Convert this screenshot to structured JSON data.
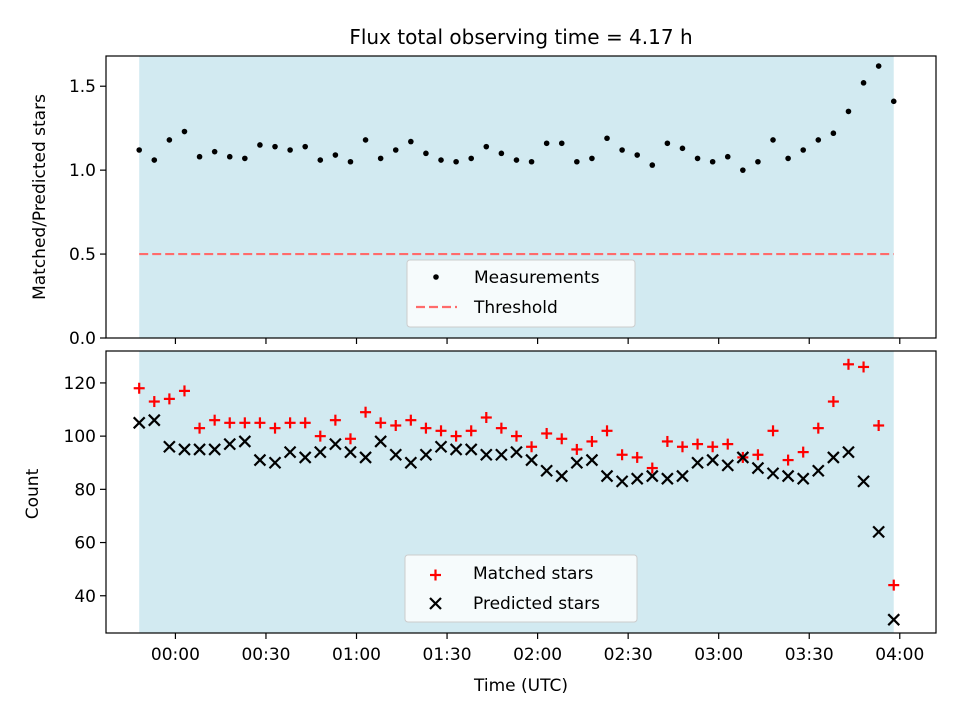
{
  "chart_data": [
    {
      "type": "scatter",
      "title": "Flux total observing time = 4.17 h",
      "xlabel": "",
      "ylabel": "Matched/Predicted stars",
      "xlim": [
        "23:37",
        "04:12"
      ],
      "ylim": [
        0,
        1.68
      ],
      "yticks": [
        0.0,
        0.5,
        1.0,
        1.5
      ],
      "ytick_labels": [
        "0.0",
        "0.5",
        "1.0",
        "1.5"
      ],
      "shaded_span": [
        "23:48",
        "03:58"
      ],
      "colors": {
        "span": "#add8e6",
        "measurements": "#000000",
        "threshold": "#ff6b6b"
      },
      "legend_position": "lower center",
      "series": [
        {
          "name": "Measurements",
          "marker": "dot",
          "x": [
            "23:48",
            "23:53",
            "23:58",
            "00:03",
            "00:08",
            "00:13",
            "00:18",
            "00:23",
            "00:28",
            "00:33",
            "00:38",
            "00:43",
            "00:48",
            "00:53",
            "00:58",
            "01:03",
            "01:08",
            "01:13",
            "01:18",
            "01:23",
            "01:28",
            "01:33",
            "01:38",
            "01:43",
            "01:48",
            "01:53",
            "01:58",
            "02:03",
            "02:08",
            "02:13",
            "02:18",
            "02:23",
            "02:28",
            "02:33",
            "02:38",
            "02:43",
            "02:48",
            "02:53",
            "02:58",
            "03:03",
            "03:08",
            "03:13",
            "03:18",
            "03:23",
            "03:28",
            "03:33",
            "03:38",
            "03:43",
            "03:48",
            "03:53",
            "03:58"
          ],
          "y": [
            1.12,
            1.06,
            1.18,
            1.23,
            1.08,
            1.11,
            1.08,
            1.07,
            1.15,
            1.14,
            1.12,
            1.14,
            1.06,
            1.09,
            1.05,
            1.18,
            1.07,
            1.12,
            1.17,
            1.1,
            1.06,
            1.05,
            1.07,
            1.14,
            1.1,
            1.06,
            1.05,
            1.16,
            1.16,
            1.05,
            1.07,
            1.19,
            1.12,
            1.09,
            1.03,
            1.16,
            1.13,
            1.07,
            1.05,
            1.08,
            1.0,
            1.05,
            1.18,
            1.07,
            1.12,
            1.18,
            1.22,
            1.35,
            1.52,
            1.62,
            1.41
          ]
        },
        {
          "name": "Threshold",
          "style": "dashed",
          "y": 0.5
        }
      ]
    },
    {
      "type": "scatter",
      "title": "",
      "xlabel": "Time (UTC)",
      "ylabel": "Count",
      "xlim": [
        "23:37",
        "04:12"
      ],
      "ylim": [
        26,
        132
      ],
      "yticks": [
        40,
        60,
        80,
        100,
        120
      ],
      "ytick_labels": [
        "40",
        "60",
        "80",
        "100",
        "120"
      ],
      "xticks": [
        "00:00",
        "00:30",
        "01:00",
        "01:30",
        "02:00",
        "02:30",
        "03:00",
        "03:30",
        "04:00"
      ],
      "shaded_span": [
        "23:48",
        "03:58"
      ],
      "colors": {
        "span": "#add8e6",
        "matched": "#ff0000",
        "predicted": "#000000"
      },
      "legend_position": "lower center",
      "series": [
        {
          "name": "Matched stars",
          "marker": "plus",
          "x": [
            "23:48",
            "23:53",
            "23:58",
            "00:03",
            "00:08",
            "00:13",
            "00:18",
            "00:23",
            "00:28",
            "00:33",
            "00:38",
            "00:43",
            "00:48",
            "00:53",
            "00:58",
            "01:03",
            "01:08",
            "01:13",
            "01:18",
            "01:23",
            "01:28",
            "01:33",
            "01:38",
            "01:43",
            "01:48",
            "01:53",
            "01:58",
            "02:03",
            "02:08",
            "02:13",
            "02:18",
            "02:23",
            "02:28",
            "02:33",
            "02:38",
            "02:43",
            "02:48",
            "02:53",
            "02:58",
            "03:03",
            "03:08",
            "03:13",
            "03:18",
            "03:23",
            "03:28",
            "03:33",
            "03:38",
            "03:43",
            "03:48",
            "03:53",
            "03:58"
          ],
          "y": [
            118,
            113,
            114,
            117,
            103,
            106,
            105,
            105,
            105,
            103,
            105,
            105,
            100,
            106,
            99,
            109,
            105,
            104,
            106,
            103,
            102,
            100,
            102,
            107,
            103,
            100,
            96,
            101,
            99,
            95,
            98,
            102,
            93,
            92,
            88,
            98,
            96,
            97,
            96,
            97,
            92,
            93,
            102,
            91,
            94,
            103,
            113,
            127,
            126,
            104,
            44
          ]
        },
        {
          "name": "Predicted stars",
          "marker": "x",
          "x": [
            "23:48",
            "23:53",
            "23:58",
            "00:03",
            "00:08",
            "00:13",
            "00:18",
            "00:23",
            "00:28",
            "00:33",
            "00:38",
            "00:43",
            "00:48",
            "00:53",
            "00:58",
            "01:03",
            "01:08",
            "01:13",
            "01:18",
            "01:23",
            "01:28",
            "01:33",
            "01:38",
            "01:43",
            "01:48",
            "01:53",
            "01:58",
            "02:03",
            "02:08",
            "02:13",
            "02:18",
            "02:23",
            "02:28",
            "02:33",
            "02:38",
            "02:43",
            "02:48",
            "02:53",
            "02:58",
            "03:03",
            "03:08",
            "03:13",
            "03:18",
            "03:23",
            "03:28",
            "03:33",
            "03:38",
            "03:43",
            "03:48",
            "03:53",
            "03:58"
          ],
          "y": [
            105,
            106,
            96,
            95,
            95,
            95,
            97,
            98,
            91,
            90,
            94,
            92,
            94,
            97,
            94,
            92,
            98,
            93,
            90,
            93,
            96,
            95,
            95,
            93,
            93,
            94,
            91,
            87,
            85,
            90,
            91,
            85,
            83,
            84,
            85,
            84,
            85,
            90,
            91,
            89,
            92,
            88,
            86,
            85,
            84,
            87,
            92,
            94,
            83,
            64,
            31
          ]
        }
      ]
    }
  ]
}
